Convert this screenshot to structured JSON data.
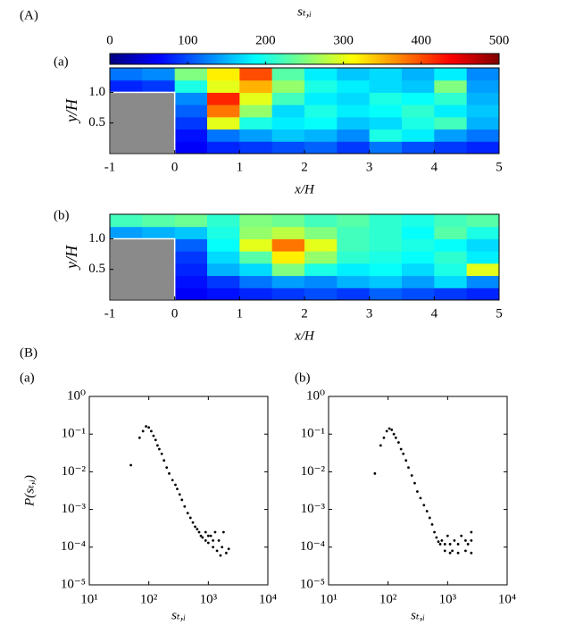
{
  "section_labels": [
    "(A)",
    "(B)"
  ],
  "colorbar": {
    "label": "sₜ,ᵢ",
    "colormap": "jet",
    "zlim": [
      0,
      500
    ],
    "zticks": [
      0,
      100,
      200,
      300,
      400,
      500
    ]
  },
  "chart_data": [
    {
      "type": "heatmap",
      "panel": "(a)",
      "xlabel": "x/H",
      "ylabel": "y/H",
      "x": [
        -0.75,
        -0.25,
        0.25,
        0.75,
        1.25,
        1.75,
        2.25,
        2.75,
        3.25,
        3.75,
        4.25,
        4.75
      ],
      "y": [
        0.1,
        0.3,
        0.5,
        0.7,
        0.9,
        1.1,
        1.3
      ],
      "z": [
        [
          null,
          null,
          60,
          80,
          90,
          100,
          110,
          90,
          120,
          100,
          90,
          80
        ],
        [
          null,
          null,
          70,
          120,
          140,
          160,
          150,
          130,
          200,
          180,
          140,
          120
        ],
        [
          null,
          null,
          90,
          300,
          200,
          180,
          190,
          160,
          170,
          200,
          220,
          150
        ],
        [
          null,
          null,
          110,
          380,
          260,
          170,
          200,
          180,
          190,
          210,
          180,
          160
        ],
        [
          null,
          null,
          130,
          420,
          300,
          220,
          180,
          170,
          200,
          190,
          210,
          150
        ],
        [
          80,
          90,
          200,
          300,
          350,
          260,
          200,
          180,
          170,
          160,
          250,
          140
        ],
        [
          120,
          130,
          250,
          320,
          400,
          230,
          180,
          160,
          170,
          150,
          180,
          130
        ]
      ],
      "obstacle": {
        "x": [
          -1,
          0
        ],
        "y": [
          0,
          1
        ]
      },
      "xlim": [
        -1,
        5
      ],
      "ylim": [
        0,
        1.4
      ],
      "xticks": [
        -1,
        0,
        1,
        2,
        3,
        4,
        5
      ],
      "yticks": [
        0.5,
        {
          "value": 1,
          "label": "1.0"
        }
      ]
    },
    {
      "type": "heatmap",
      "panel": "(b)",
      "xlabel": "x/H",
      "ylabel": "y/H",
      "x": [
        -0.75,
        -0.25,
        0.25,
        0.75,
        1.25,
        1.75,
        2.25,
        2.75,
        3.25,
        3.75,
        4.25,
        4.75
      ],
      "y": [
        0.1,
        0.3,
        0.5,
        0.7,
        0.9,
        1.1,
        1.3
      ],
      "z": [
        [
          null,
          null,
          60,
          70,
          80,
          90,
          100,
          90,
          110,
          100,
          90,
          80
        ],
        [
          null,
          null,
          70,
          90,
          120,
          140,
          130,
          150,
          160,
          140,
          170,
          130
        ],
        [
          null,
          null,
          80,
          150,
          170,
          250,
          200,
          180,
          190,
          170,
          200,
          300
        ],
        [
          null,
          null,
          90,
          170,
          230,
          320,
          260,
          210,
          200,
          190,
          210,
          180
        ],
        [
          null,
          null,
          110,
          190,
          300,
          380,
          300,
          220,
          210,
          200,
          190,
          170
        ],
        [
          140,
          150,
          160,
          200,
          260,
          280,
          250,
          220,
          210,
          190,
          230,
          200
        ],
        [
          220,
          230,
          240,
          210,
          250,
          240,
          220,
          230,
          210,
          200,
          220,
          230
        ]
      ],
      "obstacle": {
        "x": [
          -1,
          0
        ],
        "y": [
          0,
          1
        ]
      },
      "xlim": [
        -1,
        5
      ],
      "ylim": [
        0,
        1.4
      ],
      "xticks": [
        -1,
        0,
        1,
        2,
        3,
        4,
        5
      ],
      "yticks": [
        0.5,
        {
          "value": 1,
          "label": "1.0"
        }
      ]
    },
    {
      "type": "scatter",
      "panel": "(a)",
      "xlabel": "sₜ,ᵢ",
      "ylabel": "P(sₜ,ᵢ)",
      "color": "#000000",
      "xscale": "log",
      "yscale": "log",
      "xlim": [
        10,
        10000
      ],
      "ylim": [
        1e-05,
        1
      ],
      "xticks": [
        {
          "value": 10,
          "label": "10¹"
        },
        {
          "value": 100,
          "label": "10²"
        },
        {
          "value": 1000,
          "label": "10³"
        },
        {
          "value": 10000,
          "label": "10⁴"
        }
      ],
      "yticks": [
        {
          "value": 1e-05,
          "label": "10⁻⁵"
        },
        {
          "value": 0.0001,
          "label": "10⁻⁴"
        },
        {
          "value": 0.001,
          "label": "10⁻³"
        },
        {
          "value": 0.01,
          "label": "10⁻²"
        },
        {
          "value": 0.1,
          "label": "10⁻¹"
        },
        {
          "value": 1,
          "label": "10⁰"
        }
      ],
      "x": [
        50,
        70,
        80,
        90,
        100,
        110,
        120,
        130,
        140,
        150,
        165,
        180,
        200,
        220,
        250,
        280,
        300,
        330,
        360,
        400,
        450,
        500,
        550,
        600,
        650,
        700,
        750,
        800,
        900,
        1000,
        1100,
        1200,
        1300,
        1400,
        1500,
        1600,
        1700,
        1800,
        2000,
        2200,
        1000,
        900,
        1200
      ],
      "y": [
        0.015,
        0.08,
        0.12,
        0.16,
        0.15,
        0.12,
        0.09,
        0.07,
        0.05,
        0.04,
        0.03,
        0.02,
        0.013,
        0.009,
        0.006,
        0.0045,
        0.0035,
        0.0025,
        0.0018,
        0.0012,
        0.0008,
        0.0006,
        0.00045,
        0.00035,
        0.0003,
        0.00025,
        0.0002,
        0.00018,
        0.00015,
        0.00013,
        0.0002,
        0.0001,
        0.00025,
        8e-05,
        0.00015,
        6e-05,
        0.0001,
        0.00025,
        7e-05,
        9e-05,
        0.0002,
        0.00025,
        0.00015
      ]
    },
    {
      "type": "scatter",
      "panel": "(b)",
      "xlabel": "sₜ,ᵢ",
      "color": "#000000",
      "xscale": "log",
      "yscale": "log",
      "xlim": [
        10,
        10000
      ],
      "ylim": [
        1e-05,
        1
      ],
      "xticks": [
        {
          "value": 10,
          "label": "10¹"
        },
        {
          "value": 100,
          "label": "10²"
        },
        {
          "value": 1000,
          "label": "10³"
        },
        {
          "value": 10000,
          "label": "10⁴"
        }
      ],
      "yticks": [
        {
          "value": 1e-05,
          "label": "10⁻⁵"
        },
        {
          "value": 0.0001,
          "label": "10⁻⁴"
        },
        {
          "value": 0.001,
          "label": "10⁻³"
        },
        {
          "value": 0.01,
          "label": "10⁻²"
        },
        {
          "value": 0.1,
          "label": "10⁻¹"
        },
        {
          "value": 1,
          "label": "10⁰"
        }
      ],
      "x": [
        60,
        75,
        85,
        95,
        105,
        115,
        125,
        135,
        150,
        165,
        180,
        200,
        220,
        250,
        280,
        310,
        350,
        400,
        450,
        500,
        550,
        600,
        650,
        700,
        750,
        800,
        900,
        1000,
        1100,
        1200,
        1300,
        1500,
        1700,
        2000,
        2200,
        2500,
        900,
        1100,
        1500,
        2000,
        2500,
        2500
      ],
      "y": [
        0.009,
        0.05,
        0.08,
        0.12,
        0.14,
        0.13,
        0.1,
        0.08,
        0.06,
        0.04,
        0.03,
        0.02,
        0.013,
        0.008,
        0.005,
        0.003,
        0.002,
        0.0013,
        0.0009,
        0.0006,
        0.0004,
        0.00025,
        0.00018,
        0.00014,
        0.00012,
        0.00015,
        0.00012,
        0.0002,
        0.00012,
        8e-05,
        0.00015,
        0.00012,
        0.0002,
        0.00015,
        0.00012,
        0.00025,
        8e-05,
        7e-05,
        7e-05,
        8e-05,
        0.00015,
        7e-05
      ]
    }
  ]
}
